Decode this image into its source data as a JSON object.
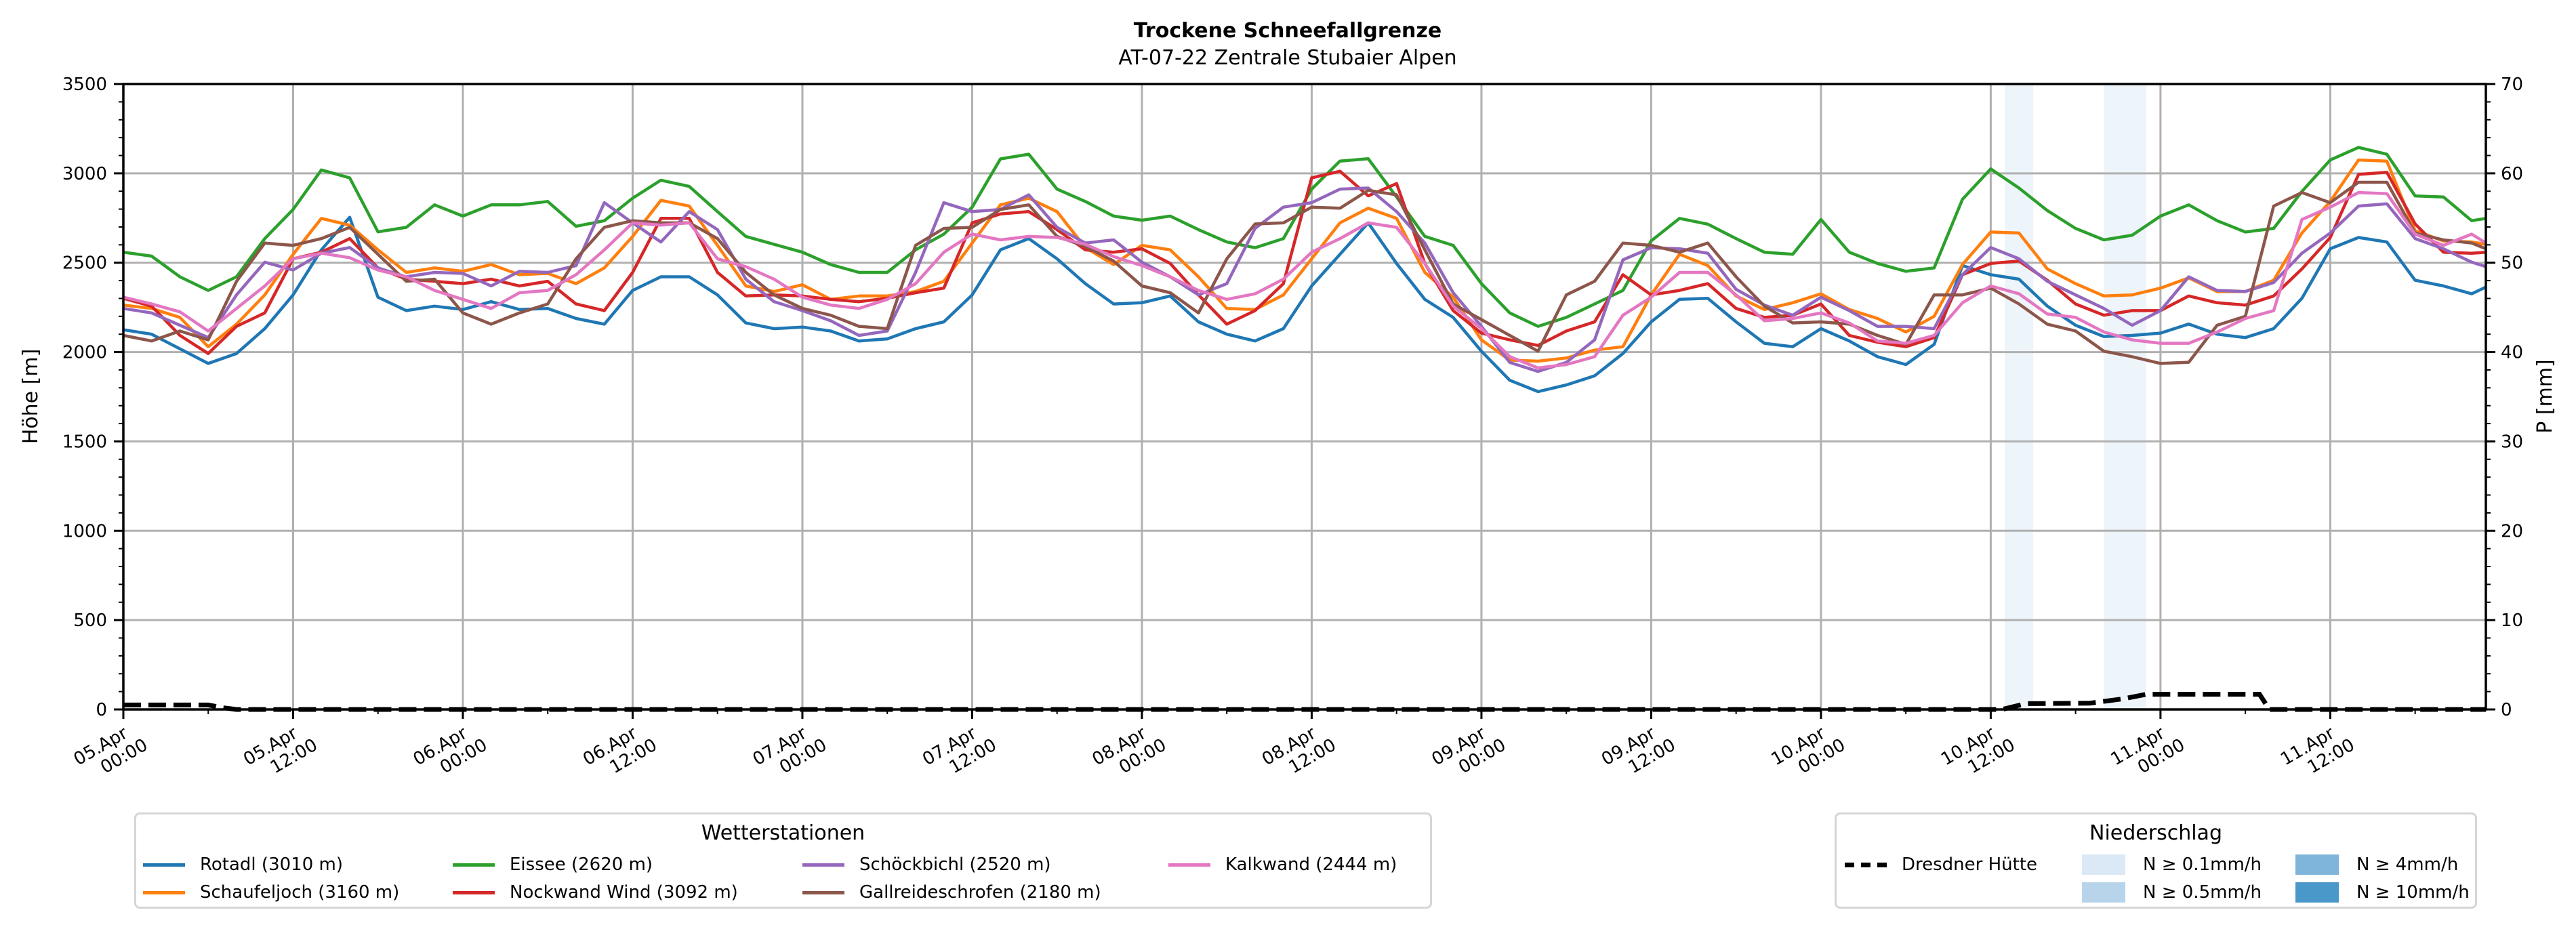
{
  "chart_data": {
    "type": "line",
    "title": "Trockene Schneefallgrenze",
    "subtitle": "AT-07-22 Zentrale Stubaier Alpen",
    "ylabel": "Höhe [m]",
    "ylabel_right": "P [mm]",
    "xlabel": "",
    "x_unit": "hours since 05.Apr 00:00",
    "xlim": [
      0,
      167
    ],
    "ylim": [
      0,
      3500
    ],
    "ylim_right": [
      0,
      70
    ],
    "grid": true,
    "x_ticks": [
      {
        "x": 0,
        "label": [
          "05.Apr",
          "00:00"
        ]
      },
      {
        "x": 12,
        "label": [
          "05.Apr",
          "12:00"
        ]
      },
      {
        "x": 24,
        "label": [
          "06.Apr",
          "00:00"
        ]
      },
      {
        "x": 36,
        "label": [
          "06.Apr",
          "12:00"
        ]
      },
      {
        "x": 48,
        "label": [
          "07.Apr",
          "00:00"
        ]
      },
      {
        "x": 60,
        "label": [
          "07.Apr",
          "12:00"
        ]
      },
      {
        "x": 72,
        "label": [
          "08.Apr",
          "00:00"
        ]
      },
      {
        "x": 84,
        "label": [
          "08.Apr",
          "12:00"
        ]
      },
      {
        "x": 96,
        "label": [
          "09.Apr",
          "00:00"
        ]
      },
      {
        "x": 108,
        "label": [
          "09.Apr",
          "12:00"
        ]
      },
      {
        "x": 120,
        "label": [
          "10.Apr",
          "00:00"
        ]
      },
      {
        "x": 132,
        "label": [
          "10.Apr",
          "12:00"
        ]
      },
      {
        "x": 144,
        "label": [
          "11.Apr",
          "00:00"
        ]
      },
      {
        "x": 156,
        "label": [
          "11.Apr",
          "12:00"
        ]
      }
    ],
    "y_ticks": [
      0,
      500,
      1000,
      1500,
      2000,
      2500,
      3000,
      3500
    ],
    "y_ticks_right": [
      0,
      10,
      20,
      30,
      40,
      50,
      60,
      70
    ],
    "series": [
      {
        "name": "Rotadl (3010 m)",
        "color": "#1f77b4",
        "values": [
          2125,
          2100,
          2018,
          1936,
          1992,
          2131,
          2320,
          2572,
          2754,
          2307,
          2232,
          2257,
          2238,
          2282,
          2238,
          2244,
          2188,
          2156,
          2345,
          2421,
          2421,
          2320,
          2163,
          2131,
          2140,
          2118,
          2062,
          2074,
          2131,
          2169,
          2320,
          2572,
          2635,
          2522,
          2383,
          2269,
          2276,
          2314,
          2169,
          2100,
          2062,
          2131,
          2370,
          2547,
          2723,
          2496,
          2295,
          2194,
          2005,
          1842,
          1779,
          1816,
          1867,
          1992,
          2169,
          2295,
          2301,
          2169,
          2049,
          2030,
          2131,
          2062,
          1974,
          1930,
          2043,
          2484,
          2433,
          2408,
          2257,
          2150,
          2087,
          2093,
          2106,
          2157,
          2100,
          2081,
          2131,
          2301,
          2578,
          2641,
          2616,
          2402,
          2370,
          2326,
          2364
        ]
      },
      {
        "name": "Schaufeljoch (3160 m)",
        "color": "#ff7f0e",
        "values": [
          2263,
          2244,
          2194,
          2030,
          2156,
          2320,
          2547,
          2748,
          2710,
          2572,
          2446,
          2471,
          2452,
          2490,
          2433,
          2440,
          2383,
          2471,
          2647,
          2849,
          2817,
          2597,
          2370,
          2339,
          2377,
          2295,
          2314,
          2314,
          2339,
          2396,
          2610,
          2824,
          2861,
          2786,
          2585,
          2490,
          2597,
          2572,
          2421,
          2244,
          2238,
          2320,
          2522,
          2723,
          2805,
          2748,
          2446,
          2307,
          2068,
          1955,
          1949,
          1967,
          2011,
          2030,
          2320,
          2547,
          2484,
          2314,
          2238,
          2276,
          2326,
          2238,
          2188,
          2112,
          2200,
          2490,
          2672,
          2666,
          2465,
          2383,
          2314,
          2320,
          2358,
          2415,
          2339,
          2339,
          2402,
          2666,
          2843,
          3075,
          3069,
          2679,
          2622,
          2616,
          2603
        ]
      },
      {
        "name": "Eissee (2620 m)",
        "color": "#2ca02c",
        "values": [
          2559,
          2537,
          2421,
          2345,
          2421,
          2635,
          2798,
          3019,
          2975,
          2673,
          2698,
          2824,
          2761,
          2824,
          2824,
          2843,
          2704,
          2735,
          2861,
          2962,
          2927,
          2786,
          2647,
          2603,
          2559,
          2490,
          2446,
          2446,
          2572,
          2660,
          2811,
          3081,
          3107,
          2912,
          2843,
          2761,
          2738,
          2761,
          2685,
          2616,
          2584,
          2635,
          2912,
          3069,
          3082,
          2868,
          2647,
          2597,
          2383,
          2219,
          2144,
          2194,
          2269,
          2345,
          2622,
          2748,
          2716,
          2635,
          2559,
          2547,
          2742,
          2559,
          2496,
          2452,
          2471,
          2855,
          3025,
          2918,
          2792,
          2692,
          2628,
          2654,
          2761,
          2824,
          2735,
          2672,
          2692,
          2899,
          3075,
          3145,
          3107,
          2874,
          2868,
          2735,
          2748
        ]
      },
      {
        "name": "Nockwand Wind (3092 m)",
        "color": "#d62728",
        "values": [
          2301,
          2257,
          2093,
          1992,
          2144,
          2219,
          2522,
          2559,
          2635,
          2471,
          2408,
          2396,
          2383,
          2408,
          2370,
          2396,
          2269,
          2232,
          2446,
          2748,
          2748,
          2446,
          2314,
          2320,
          2314,
          2295,
          2282,
          2301,
          2332,
          2358,
          2723,
          2773,
          2786,
          2685,
          2572,
          2559,
          2578,
          2496,
          2320,
          2156,
          2232,
          2383,
          2975,
          3012,
          2874,
          2943,
          2496,
          2232,
          2106,
          2068,
          2037,
          2118,
          2169,
          2433,
          2320,
          2345,
          2383,
          2244,
          2194,
          2206,
          2269,
          2093,
          2055,
          2030,
          2081,
          2433,
          2496,
          2509,
          2402,
          2269,
          2206,
          2232,
          2232,
          2314,
          2276,
          2263,
          2314,
          2465,
          2641,
          2994,
          3006,
          2717,
          2559,
          2553,
          2559
        ]
      },
      {
        "name": "Schöckbichl (2520 m)",
        "color": "#9467bd",
        "values": [
          2244,
          2219,
          2150,
          2081,
          2320,
          2503,
          2459,
          2553,
          2585,
          2471,
          2421,
          2446,
          2440,
          2370,
          2452,
          2446,
          2484,
          2836,
          2723,
          2616,
          2786,
          2685,
          2408,
          2282,
          2232,
          2175,
          2093,
          2118,
          2446,
          2836,
          2786,
          2798,
          2880,
          2698,
          2610,
          2628,
          2503,
          2421,
          2320,
          2383,
          2692,
          2811,
          2836,
          2912,
          2918,
          2786,
          2610,
          2332,
          2144,
          1942,
          1892,
          1942,
          2068,
          2516,
          2584,
          2578,
          2553,
          2351,
          2263,
          2206,
          2307,
          2232,
          2144,
          2144,
          2131,
          2433,
          2585,
          2522,
          2396,
          2320,
          2244,
          2150,
          2232,
          2421,
          2345,
          2339,
          2389,
          2553,
          2666,
          2817,
          2830,
          2635,
          2578,
          2503,
          2478
        ]
      },
      {
        "name": "Gallreideschrofen (2180 m)",
        "color": "#8c564b",
        "values": [
          2093,
          2062,
          2118,
          2068,
          2396,
          2610,
          2597,
          2635,
          2698,
          2547,
          2396,
          2408,
          2219,
          2156,
          2219,
          2269,
          2522,
          2698,
          2735,
          2723,
          2723,
          2635,
          2446,
          2320,
          2244,
          2206,
          2144,
          2131,
          2597,
          2692,
          2698,
          2798,
          2824,
          2647,
          2591,
          2509,
          2370,
          2332,
          2219,
          2522,
          2717,
          2723,
          2811,
          2805,
          2905,
          2880,
          2572,
          2269,
          2182,
          2093,
          2005,
          2320,
          2396,
          2610,
          2597,
          2559,
          2610,
          2421,
          2257,
          2163,
          2169,
          2156,
          2093,
          2043,
          2320,
          2320,
          2358,
          2269,
          2156,
          2118,
          2005,
          1974,
          1936,
          1943,
          2150,
          2200,
          2817,
          2893,
          2836,
          2950,
          2950,
          2666,
          2628,
          2610,
          2578
        ]
      },
      {
        "name": "Kalkwand (2444 m)",
        "color": "#e377c2",
        "values": [
          2307,
          2269,
          2225,
          2118,
          2244,
          2370,
          2522,
          2553,
          2528,
          2459,
          2421,
          2345,
          2295,
          2244,
          2332,
          2345,
          2433,
          2572,
          2723,
          2710,
          2723,
          2522,
          2478,
          2408,
          2307,
          2263,
          2244,
          2295,
          2383,
          2559,
          2660,
          2628,
          2647,
          2641,
          2603,
          2534,
          2484,
          2421,
          2345,
          2295,
          2326,
          2408,
          2559,
          2635,
          2723,
          2698,
          2496,
          2257,
          2131,
          1974,
          1911,
          1930,
          1974,
          2206,
          2307,
          2446,
          2446,
          2320,
          2175,
          2188,
          2219,
          2163,
          2062,
          2049,
          2093,
          2276,
          2370,
          2326,
          2213,
          2194,
          2112,
          2068,
          2049,
          2049,
          2112,
          2188,
          2232,
          2742,
          2811,
          2893,
          2887,
          2660,
          2597,
          2660,
          2610
        ]
      }
    ],
    "precipitation_line": {
      "name": "Dresdner Hütte",
      "axis": "right",
      "color": "#000000",
      "points": [
        [
          0,
          0.5
        ],
        [
          6,
          0.5
        ],
        [
          7,
          0.2
        ],
        [
          8,
          0
        ],
        [
          132.8,
          0
        ],
        [
          134.5,
          0.65
        ],
        [
          139,
          0.7
        ],
        [
          141.4,
          1.2
        ],
        [
          143,
          1.7
        ],
        [
          151,
          1.7
        ],
        [
          151.7,
          0
        ],
        [
          167,
          0
        ]
      ]
    },
    "precipitation_bands": [
      {
        "start": 133,
        "end": 135,
        "level": "N ≥ 0.1mm/h"
      },
      {
        "start": 140,
        "end": 143,
        "level": "N ≥ 0.1mm/h"
      }
    ],
    "legend_stations": {
      "title": "Wetterstationen",
      "placement": "bottom-left"
    },
    "legend_precip": {
      "title": "Niederschlag",
      "placement": "bottom-right",
      "line_label": "Dresdner Hütte",
      "levels": [
        {
          "label": "N ≥ 0.1mm/h",
          "color": "#dbe9f6"
        },
        {
          "label": "N ≥ 0.5mm/h",
          "color": "#b8d4ea"
        },
        {
          "label": "N ≥ 4mm/h",
          "color": "#7fb5da"
        },
        {
          "label": "N ≥ 10mm/h",
          "color": "#4a98c9"
        }
      ]
    }
  }
}
